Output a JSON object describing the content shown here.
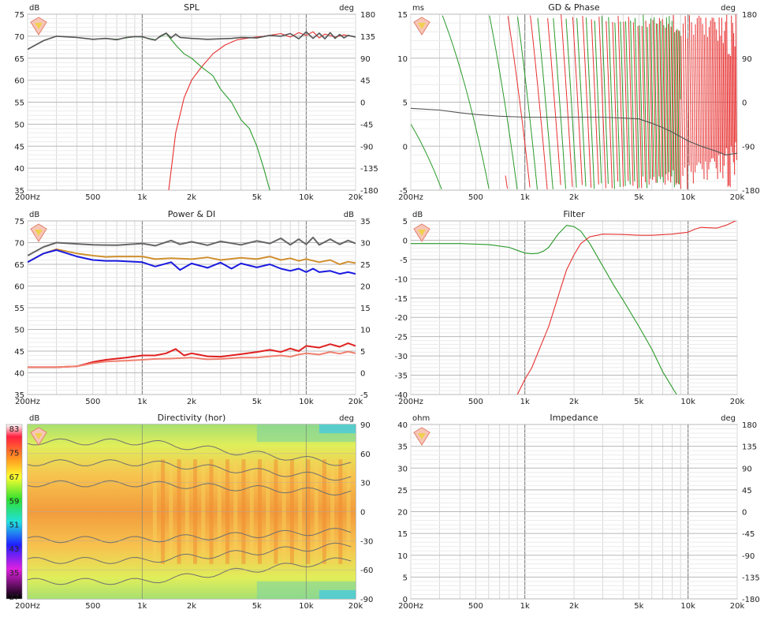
{
  "chart_data": [
    {
      "type": "line",
      "title": "SPL",
      "left_unit": "dB",
      "right_unit": "deg",
      "x_ticks": [
        "200Hz",
        "500",
        "1k",
        "2k",
        "5k",
        "10k",
        "20k"
      ],
      "y_ticks": [
        "75",
        "70",
        "65",
        "60",
        "55",
        "50",
        "45",
        "40",
        "35"
      ],
      "y2_ticks": [
        "180",
        "135",
        "90",
        "45",
        "0",
        "-45",
        "-90",
        "-135",
        "-180"
      ],
      "xlim": [
        200,
        20000
      ],
      "ylim": [
        35,
        75
      ],
      "y2lim": [
        -180,
        180
      ],
      "xscale": "log",
      "grid": true,
      "series": [
        {
          "color": "#e83030",
          "x": [
            1450,
            1600,
            1800,
            2000,
            2300,
            2700,
            3200,
            3800,
            4500,
            5500,
            7000,
            8000,
            9000,
            10000,
            11000,
            12000,
            13000,
            15000,
            17000,
            20000
          ],
          "y": [
            35,
            48,
            56,
            60,
            63,
            66,
            68,
            69.2,
            69.6,
            70,
            70.6,
            69.8,
            70.8,
            70.2,
            71,
            69.6,
            70.5,
            69.8,
            70.3,
            69.8
          ]
        },
        {
          "color": "#2a9a2a",
          "x": [
            200,
            250,
            300,
            400,
            500,
            600,
            700,
            900,
            1000,
            1200,
            1400,
            1600,
            1800,
            2000,
            2300,
            2700,
            3000,
            3500,
            4000,
            4500,
            5000,
            5500,
            6000
          ],
          "y": [
            67,
            69,
            70,
            69.7,
            69.3,
            69.5,
            69.3,
            69.9,
            69.8,
            69.2,
            70.6,
            68,
            66,
            65,
            63,
            61,
            58,
            55,
            51,
            49,
            45,
            40,
            35
          ]
        },
        {
          "color": "#555555",
          "x": [
            200,
            250,
            300,
            400,
            500,
            600,
            700,
            800,
            900,
            1000,
            1100,
            1200,
            1300,
            1400,
            1500,
            1600,
            1700,
            2000,
            2500,
            3000,
            3500,
            4000,
            5000,
            6000,
            7000,
            8000,
            9000,
            10000,
            11000,
            12000,
            13000,
            14000,
            15000,
            16000,
            17000,
            18000,
            20000
          ],
          "y": [
            67,
            69,
            70,
            69.7,
            69.3,
            69.5,
            69.2,
            69.7,
            69.9,
            69.9,
            69.4,
            69.1,
            70.1,
            70.7,
            69.6,
            70.5,
            69.7,
            69.5,
            69.3,
            69.4,
            69.5,
            69.7,
            69.6,
            70.2,
            70,
            70.6,
            69.4,
            71,
            69.5,
            70.7,
            69.4,
            70.8,
            69.5,
            70.4,
            69.6,
            70.2,
            69.8
          ]
        }
      ]
    },
    {
      "type": "line",
      "title": "GD & Phase",
      "left_unit": "ms",
      "right_unit": "deg",
      "x_ticks": [
        "200Hz",
        "500",
        "1k",
        "2k",
        "5k",
        "10k",
        "20k"
      ],
      "y_ticks": [
        "15",
        "10",
        "5",
        "0",
        "-5"
      ],
      "y2_ticks": [
        "180",
        "90",
        "0",
        "-90",
        "-180"
      ],
      "xlim": [
        200,
        20000
      ],
      "ylim": [
        -5,
        15
      ],
      "y2lim": [
        -180,
        180
      ],
      "xscale": "log",
      "grid": true,
      "series": [
        {
          "color": "#555555",
          "x": [
            200,
            300,
            400,
            500,
            700,
            1000,
            1500,
            2000,
            3000,
            4000,
            5000,
            6000,
            7000,
            8000,
            10000,
            12000,
            15000,
            17000,
            20000
          ],
          "y": [
            4.3,
            4.1,
            3.8,
            3.6,
            3.4,
            3.3,
            3.3,
            3.3,
            3.3,
            3.2,
            3.1,
            2.6,
            2.1,
            1.6,
            0.6,
            0,
            -0.6,
            -1,
            -0.8
          ]
        }
      ],
      "phase_series": [
        {
          "color": "#2a9a2a",
          "freq_range": [
            200,
            9000
          ],
          "note": "sawtooth phase wrapping"
        },
        {
          "color": "#e83030",
          "freq_range": [
            760,
            20000
          ],
          "note": "sawtooth phase wrapping"
        }
      ]
    },
    {
      "type": "line",
      "title": "Power & DI",
      "left_unit": "dB",
      "right_unit": "dB",
      "x_ticks": [
        "200Hz",
        "500",
        "1k",
        "2k",
        "5k",
        "10k",
        "20k"
      ],
      "y_ticks": [
        "75",
        "70",
        "65",
        "60",
        "55",
        "50",
        "45",
        "40",
        "35"
      ],
      "y2_ticks": [
        "35",
        "30",
        "25",
        "20",
        "15",
        "10",
        "5",
        "0",
        "-5"
      ],
      "xlim": [
        200,
        20000
      ],
      "ylim": [
        35,
        75
      ],
      "y2lim": [
        -5,
        35
      ],
      "xscale": "log",
      "grid": true,
      "series": [
        {
          "color": "#666666",
          "x": [
            200,
            250,
            300,
            400,
            500,
            700,
            1000,
            1200,
            1500,
            1700,
            2000,
            2500,
            3000,
            4000,
            5000,
            6000,
            7000,
            8000,
            9000,
            10000,
            11000,
            12000,
            14000,
            16000,
            18000,
            20000
          ],
          "y": [
            67,
            69,
            70,
            69.7,
            69.5,
            69.4,
            69.8,
            69.3,
            70.5,
            69.6,
            70.2,
            69.4,
            70.3,
            69.5,
            70.4,
            69.8,
            71,
            69.5,
            70.8,
            69.6,
            71.2,
            69.5,
            70.8,
            69.6,
            70.5,
            69.8
          ]
        },
        {
          "color": "#d09030",
          "x": [
            200,
            250,
            300,
            400,
            500,
            600,
            700,
            1000,
            1200,
            1500,
            2000,
            2500,
            3000,
            4000,
            5000,
            6000,
            7000,
            8000,
            9000,
            10000,
            12000,
            14000,
            16000,
            18000,
            20000
          ],
          "y": [
            65.5,
            67.5,
            68.5,
            67.5,
            67,
            66.7,
            66.8,
            66.8,
            66.2,
            66.4,
            66.2,
            66.6,
            66,
            66.5,
            66.2,
            66.8,
            66,
            66.4,
            65.8,
            66.2,
            65.5,
            66,
            65,
            65.6,
            65.3
          ]
        },
        {
          "color": "#1a1ae0",
          "x": [
            200,
            250,
            300,
            400,
            500,
            600,
            700,
            1000,
            1200,
            1500,
            1700,
            2000,
            2500,
            3000,
            3500,
            4000,
            5000,
            6000,
            7000,
            8000,
            9000,
            10000,
            11000,
            12000,
            14000,
            16000,
            18000,
            20000
          ],
          "y": [
            65.5,
            67.5,
            68.3,
            66.8,
            66,
            65.8,
            65.8,
            65.5,
            64.5,
            65.5,
            63.7,
            65.2,
            64.2,
            65.4,
            64,
            65.2,
            64.3,
            65,
            64,
            63.5,
            64,
            63.2,
            64,
            63.2,
            63.5,
            62.8,
            63.2,
            62.8
          ]
        },
        {
          "color": "#e02020",
          "x": [
            200,
            300,
            400,
            500,
            600,
            800,
            1000,
            1200,
            1400,
            1600,
            1800,
            2000,
            2500,
            3000,
            4000,
            5000,
            6000,
            7000,
            8000,
            9000,
            10000,
            12000,
            14000,
            16000,
            18000,
            20000
          ],
          "y": [
            41.3,
            41.3,
            41.5,
            42.5,
            43,
            43.5,
            44,
            44,
            44.5,
            45.5,
            44,
            44.5,
            43.8,
            43.7,
            44.3,
            44.8,
            45.3,
            44.8,
            45.6,
            45,
            46.2,
            45.8,
            46.6,
            46,
            46.8,
            46.2
          ]
        },
        {
          "color": "#f08070",
          "x": [
            200,
            300,
            400,
            500,
            600,
            800,
            1000,
            1200,
            1500,
            2000,
            2500,
            3000,
            4000,
            5000,
            6000,
            7000,
            8000,
            9000,
            10000,
            12000,
            14000,
            16000,
            18000,
            20000
          ],
          "y": [
            41.3,
            41.3,
            41.5,
            42.2,
            42.6,
            42.8,
            43,
            43.2,
            43.3,
            43.5,
            43.1,
            43.2,
            43.5,
            43.5,
            43.8,
            44,
            43.7,
            44.2,
            44.5,
            44.2,
            44.8,
            44.4,
            44.9,
            44.5
          ]
        }
      ]
    },
    {
      "type": "line",
      "title": "Filter",
      "left_unit": "dB",
      "x_ticks": [
        "200Hz",
        "500",
        "1k",
        "2k",
        "5k",
        "10k",
        "20k"
      ],
      "y_ticks": [
        "5",
        "0",
        "-5",
        "-10",
        "-15",
        "-20",
        "-25",
        "-30",
        "-35",
        "-40"
      ],
      "xlim": [
        200,
        20000
      ],
      "ylim": [
        -40,
        6
      ],
      "xscale": "log",
      "grid": true,
      "series": [
        {
          "color": "#2a9a2a",
          "x": [
            200,
            400,
            600,
            800,
            900,
            1000,
            1100,
            1200,
            1300,
            1400,
            1600,
            1800,
            2000,
            2200,
            2500,
            3000,
            3500,
            4000,
            5000,
            6000,
            7000,
            8500
          ],
          "y": [
            0,
            0,
            -0.3,
            -1,
            -1.8,
            -2.5,
            -2.7,
            -2.6,
            -2,
            -1,
            2.5,
            4.8,
            4.5,
            3.3,
            0,
            -6,
            -11,
            -15,
            -22,
            -28,
            -34,
            -40
          ]
        },
        {
          "color": "#e83030",
          "x": [
            900,
            1000,
            1100,
            1200,
            1400,
            1600,
            1800,
            2000,
            2200,
            2500,
            3000,
            4000,
            5000,
            6000,
            8000,
            10000,
            11000,
            12000,
            13000,
            15000,
            17000,
            20000
          ],
          "y": [
            -40,
            -36,
            -33,
            -29,
            -22,
            -14,
            -7,
            -3,
            0,
            1.8,
            2.5,
            2.4,
            2.2,
            2.2,
            2.5,
            3,
            3.8,
            4.3,
            4.2,
            4.1,
            4.8,
            6.2
          ]
        }
      ]
    },
    {
      "type": "heatmap",
      "title": "Directivity (hor)",
      "left_unit": "dB",
      "right_unit": "deg",
      "x_ticks": [
        "200Hz",
        "500",
        "1k",
        "2k",
        "5k",
        "10k",
        "20k"
      ],
      "y2_ticks": [
        "90",
        "60",
        "30",
        "0",
        "-30",
        "-60",
        "-90"
      ],
      "colorbar_ticks": [
        "83",
        "75",
        "67",
        "59",
        "51",
        "43",
        "35",
        "27"
      ],
      "xlim": [
        200,
        20000
      ],
      "y2lim": [
        -90,
        90
      ],
      "zlim": [
        27,
        83
      ],
      "xscale": "log"
    },
    {
      "type": "line",
      "title": "Impedance",
      "left_unit": "ohm",
      "right_unit": "deg",
      "x_ticks": [
        "200Hz",
        "500",
        "1k",
        "2k",
        "5k",
        "10k",
        "20k"
      ],
      "y_ticks": [
        "40",
        "35",
        "30",
        "25",
        "20",
        "15",
        "10",
        "5",
        "0"
      ],
      "y2_ticks": [
        "180",
        "135",
        "90",
        "45",
        "0",
        "-45",
        "-90",
        "-135",
        "-180"
      ],
      "xlim": [
        200,
        20000
      ],
      "ylim": [
        0,
        40
      ],
      "y2lim": [
        -180,
        180
      ],
      "xscale": "log",
      "grid": true,
      "series": []
    }
  ]
}
